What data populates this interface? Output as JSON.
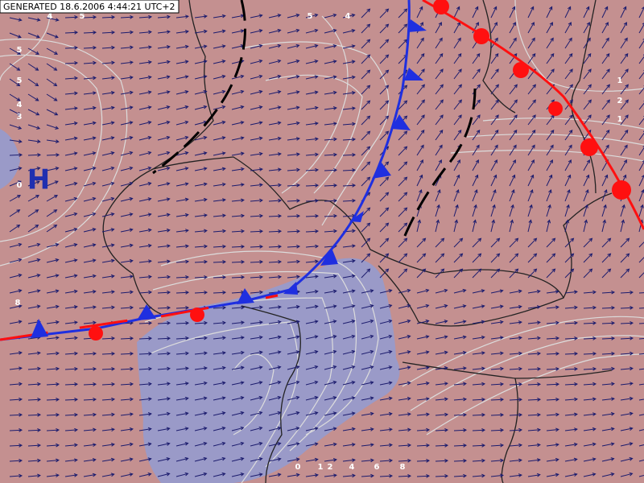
{
  "header": {
    "generated": "GENERATED 18.6.2006 4:44:21 UTC+2"
  },
  "pressure_center": {
    "label": "H"
  },
  "contour_labels": [
    "4",
    "5",
    "5",
    "4",
    "5",
    "5",
    "4",
    "3",
    "0",
    "8",
    "1",
    "2",
    "1",
    "0",
    "1",
    "2",
    "4",
    "6",
    "8"
  ]
}
